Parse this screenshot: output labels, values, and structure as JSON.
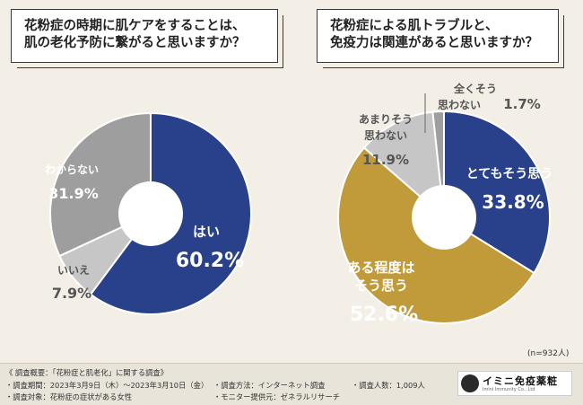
{
  "questions": {
    "left": {
      "line1": "花粉症の時期に肌ケアをすることは、",
      "line2": "肌の老化予防に繋がると思いますか？"
    },
    "right": {
      "line1": "花粉症による肌トラブルと、",
      "line2": "免疫力は関連があると思いますか？"
    }
  },
  "sample_note": "(n=932人)",
  "footer": {
    "title": "《 調査概要：「花粉症と肌老化」に関する調査》",
    "period": "・調査期間：2023年3月9日（木）～2023年3月10日（金）",
    "target": "・調査対象：花粉症の症状がある女性",
    "method": "・調査方法：インターネット調査",
    "provider": "・モニター提供元：ゼネラルリサーチ",
    "count": "・調査人数：1,009人"
  },
  "logo": {
    "name": "イミニ免疫薬粧",
    "sub": "Imini Immunity Co., Ltd"
  },
  "colors": {
    "navy": "#28418a",
    "gold": "#c19a3a",
    "gray": "#9e9e9e",
    "lightgray": "#c6c6c6",
    "hole": "#ffffff"
  },
  "chart_data": [
    {
      "type": "pie",
      "title": "花粉症の時期に肌ケアをすることは、肌の老化予防に繋がると思いますか？",
      "unit": "%",
      "slices": [
        {
          "label": "はい",
          "value": 60.2,
          "color": "#28418a"
        },
        {
          "label": "いいえ",
          "value": 7.9,
          "color": "#c6c6c6"
        },
        {
          "label": "わからない",
          "value": 31.9,
          "color": "#9e9e9e"
        }
      ]
    },
    {
      "type": "pie",
      "title": "花粉症による肌トラブルと、免疫力は関連があると思いますか？",
      "unit": "%",
      "sample": "n=932人",
      "slices": [
        {
          "label": "とてもそう思う",
          "value": 33.8,
          "color": "#28418a"
        },
        {
          "label": "ある程度はそう思う",
          "value": 52.6,
          "color": "#c19a3a"
        },
        {
          "label": "あまりそう思わない",
          "value": 11.9,
          "color": "#c6c6c6"
        },
        {
          "label": "全くそう思わない",
          "value": 1.7,
          "color": "#9e9e9e"
        }
      ]
    }
  ]
}
